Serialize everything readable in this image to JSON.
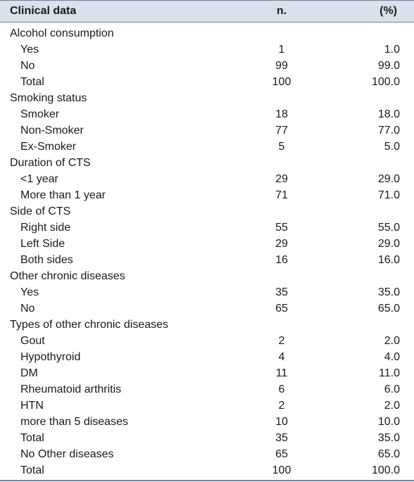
{
  "header": {
    "label": "Clinical data",
    "n": "n.",
    "pct": "(%)"
  },
  "rows": [
    {
      "label": "Alcohol consumption",
      "n": "",
      "pct": "",
      "indent": false
    },
    {
      "label": "Yes",
      "n": "1",
      "pct": "1.0",
      "indent": true
    },
    {
      "label": "No",
      "n": "99",
      "pct": "99.0",
      "indent": true
    },
    {
      "label": "Total",
      "n": "100",
      "pct": "100.0",
      "indent": true
    },
    {
      "label": "Smoking status",
      "n": "",
      "pct": "",
      "indent": false
    },
    {
      "label": "Smoker",
      "n": "18",
      "pct": "18.0",
      "indent": true
    },
    {
      "label": "Non-Smoker",
      "n": "77",
      "pct": "77.0",
      "indent": true
    },
    {
      "label": "Ex-Smoker",
      "n": "5",
      "pct": "5.0",
      "indent": true
    },
    {
      "label": "Duration of CTS",
      "n": "",
      "pct": "",
      "indent": false
    },
    {
      "label": "<1 year",
      "n": "29",
      "pct": "29.0",
      "indent": true
    },
    {
      "label": "More than 1 year",
      "n": "71",
      "pct": "71.0",
      "indent": true
    },
    {
      "label": "Side of CTS",
      "n": "",
      "pct": "",
      "indent": false
    },
    {
      "label": "Right side",
      "n": "55",
      "pct": "55.0",
      "indent": true
    },
    {
      "label": "Left Side",
      "n": "29",
      "pct": "29.0",
      "indent": true
    },
    {
      "label": "Both sides",
      "n": "16",
      "pct": "16.0",
      "indent": true
    },
    {
      "label": "Other chronic diseases",
      "n": "",
      "pct": "",
      "indent": false
    },
    {
      "label": "Yes",
      "n": "35",
      "pct": "35.0",
      "indent": true
    },
    {
      "label": "No",
      "n": "65",
      "pct": "65.0",
      "indent": true
    },
    {
      "label": "Types of other chronic diseases",
      "n": "",
      "pct": "",
      "indent": false
    },
    {
      "label": "Gout",
      "n": "2",
      "pct": "2.0",
      "indent": true
    },
    {
      "label": "Hypothyroid",
      "n": "4",
      "pct": "4.0",
      "indent": true
    },
    {
      "label": "DM",
      "n": "11",
      "pct": "11.0",
      "indent": true
    },
    {
      "label": "Rheumatoid arthritis",
      "n": "6",
      "pct": "6.0",
      "indent": true
    },
    {
      "label": "HTN",
      "n": "2",
      "pct": "2.0",
      "indent": true
    },
    {
      "label": "more than 5 diseases",
      "n": "10",
      "pct": "10.0",
      "indent": true
    },
    {
      "label": "Total",
      "n": "35",
      "pct": "35.0",
      "indent": true
    },
    {
      "label": "No Other diseases",
      "n": "65",
      "pct": "65.0",
      "indent": true
    },
    {
      "label": "Total",
      "n": "100",
      "pct": "100.0",
      "indent": true
    }
  ]
}
